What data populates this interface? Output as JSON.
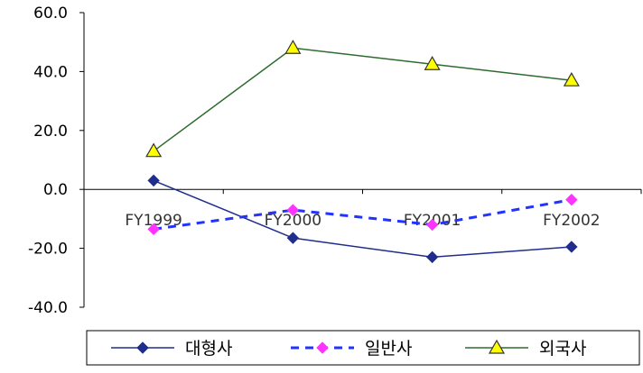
{
  "chart_data": {
    "type": "line",
    "categories": [
      "FY1999",
      "FY2000",
      "FY2001",
      "FY2002"
    ],
    "ylim": [
      -40,
      60
    ],
    "y_ticks": [
      "60.0",
      "40.0",
      "20.0",
      "0.0",
      "-20.0",
      "-40.0"
    ],
    "grid": false,
    "legend_position": "bottom",
    "series": [
      {
        "name": "대형사",
        "values": [
          3.0,
          -16.5,
          -23.0,
          -19.5
        ],
        "color": "#1f2d8c",
        "marker": "diamond",
        "line_style": "solid"
      },
      {
        "name": "일반사",
        "values": [
          -13.5,
          -7.0,
          -12.0,
          -3.5
        ],
        "color": "#2233ff",
        "marker_color": "#ff33ff",
        "marker": "diamond",
        "line_style": "dashed"
      },
      {
        "name": "외국사",
        "values": [
          13.0,
          48.0,
          42.5,
          37.0
        ],
        "color": "#2e6b2e",
        "marker_color": "#ffff00",
        "marker": "triangle",
        "line_style": "solid"
      }
    ]
  }
}
